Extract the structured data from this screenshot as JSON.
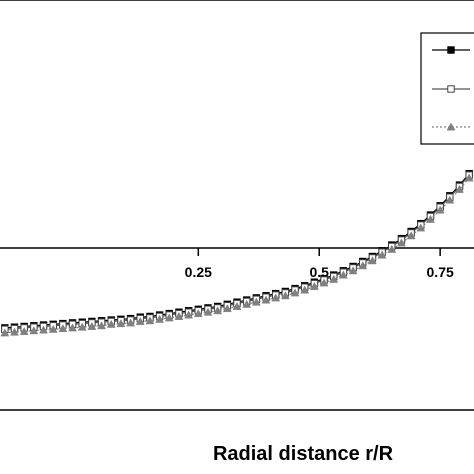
{
  "chart_data": {
    "type": "line",
    "xlabel": "Radial distance r/R",
    "ylabel": "",
    "xlim": [
      -0.16,
      0.82
    ],
    "ylim": [
      0,
      1
    ],
    "x_ticks": [
      0.25,
      0.5,
      0.75
    ],
    "x_tick_labels": [
      "0.25",
      "0.5",
      "0.75"
    ],
    "grid": false,
    "legend_position": "top-right",
    "series": [
      {
        "marker": "filled-square",
        "line": "solid",
        "color": "#000000",
        "x": [
          -0.15,
          -0.13,
          -0.11,
          -0.09,
          -0.07,
          -0.05,
          -0.03,
          -0.01,
          0.01,
          0.03,
          0.05,
          0.07,
          0.09,
          0.11,
          0.13,
          0.15,
          0.17,
          0.19,
          0.21,
          0.23,
          0.25,
          0.27,
          0.29,
          0.31,
          0.33,
          0.35,
          0.37,
          0.39,
          0.41,
          0.43,
          0.45,
          0.47,
          0.49,
          0.51,
          0.53,
          0.55,
          0.57,
          0.59,
          0.61,
          0.63,
          0.65,
          0.67,
          0.69,
          0.71,
          0.73,
          0.75,
          0.77,
          0.79,
          0.81
        ],
        "y": [
          0.115,
          0.116,
          0.117,
          0.118,
          0.119,
          0.12,
          0.121,
          0.122,
          0.123,
          0.124,
          0.125,
          0.126,
          0.127,
          0.128,
          0.13,
          0.131,
          0.133,
          0.135,
          0.137,
          0.139,
          0.141,
          0.143,
          0.145,
          0.148,
          0.151,
          0.154,
          0.157,
          0.16,
          0.163,
          0.166,
          0.17,
          0.174,
          0.179,
          0.184,
          0.189,
          0.195,
          0.201,
          0.208,
          0.215,
          0.223,
          0.231,
          0.24,
          0.25,
          0.261,
          0.273,
          0.286,
          0.3,
          0.315,
          0.331
        ]
      },
      {
        "marker": "open-square",
        "line": "solid",
        "color": "#555555",
        "x": [
          -0.15,
          -0.13,
          -0.11,
          -0.09,
          -0.07,
          -0.05,
          -0.03,
          -0.01,
          0.01,
          0.03,
          0.05,
          0.07,
          0.09,
          0.11,
          0.13,
          0.15,
          0.17,
          0.19,
          0.21,
          0.23,
          0.25,
          0.27,
          0.29,
          0.31,
          0.33,
          0.35,
          0.37,
          0.39,
          0.41,
          0.43,
          0.45,
          0.47,
          0.49,
          0.51,
          0.53,
          0.55,
          0.57,
          0.59,
          0.61,
          0.63,
          0.65,
          0.67,
          0.69,
          0.71,
          0.73,
          0.75,
          0.77,
          0.79,
          0.81
        ],
        "y": [
          0.113,
          0.114,
          0.115,
          0.116,
          0.117,
          0.118,
          0.119,
          0.12,
          0.121,
          0.122,
          0.123,
          0.124,
          0.125,
          0.126,
          0.128,
          0.129,
          0.131,
          0.133,
          0.135,
          0.137,
          0.139,
          0.141,
          0.143,
          0.146,
          0.149,
          0.152,
          0.155,
          0.158,
          0.161,
          0.164,
          0.168,
          0.172,
          0.177,
          0.182,
          0.187,
          0.193,
          0.199,
          0.206,
          0.213,
          0.221,
          0.229,
          0.238,
          0.248,
          0.259,
          0.271,
          0.284,
          0.298,
          0.313,
          0.329
        ]
      },
      {
        "marker": "filled-triangle",
        "line": "dotted",
        "color": "#808080",
        "x": [
          -0.15,
          -0.13,
          -0.11,
          -0.09,
          -0.07,
          -0.05,
          -0.03,
          -0.01,
          0.01,
          0.03,
          0.05,
          0.07,
          0.09,
          0.11,
          0.13,
          0.15,
          0.17,
          0.19,
          0.21,
          0.23,
          0.25,
          0.27,
          0.29,
          0.31,
          0.33,
          0.35,
          0.37,
          0.39,
          0.41,
          0.43,
          0.45,
          0.47,
          0.49,
          0.51,
          0.53,
          0.55,
          0.57,
          0.59,
          0.61,
          0.63,
          0.65,
          0.67,
          0.69,
          0.71,
          0.73,
          0.75,
          0.77,
          0.79,
          0.81
        ],
        "y": [
          0.108,
          0.109,
          0.11,
          0.111,
          0.112,
          0.113,
          0.114,
          0.115,
          0.116,
          0.117,
          0.118,
          0.12,
          0.121,
          0.122,
          0.124,
          0.125,
          0.127,
          0.129,
          0.131,
          0.133,
          0.135,
          0.137,
          0.139,
          0.142,
          0.145,
          0.148,
          0.151,
          0.154,
          0.157,
          0.16,
          0.164,
          0.168,
          0.173,
          0.178,
          0.183,
          0.189,
          0.195,
          0.202,
          0.209,
          0.217,
          0.225,
          0.234,
          0.244,
          0.255,
          0.267,
          0.28,
          0.294,
          0.309,
          0.325
        ]
      }
    ]
  }
}
